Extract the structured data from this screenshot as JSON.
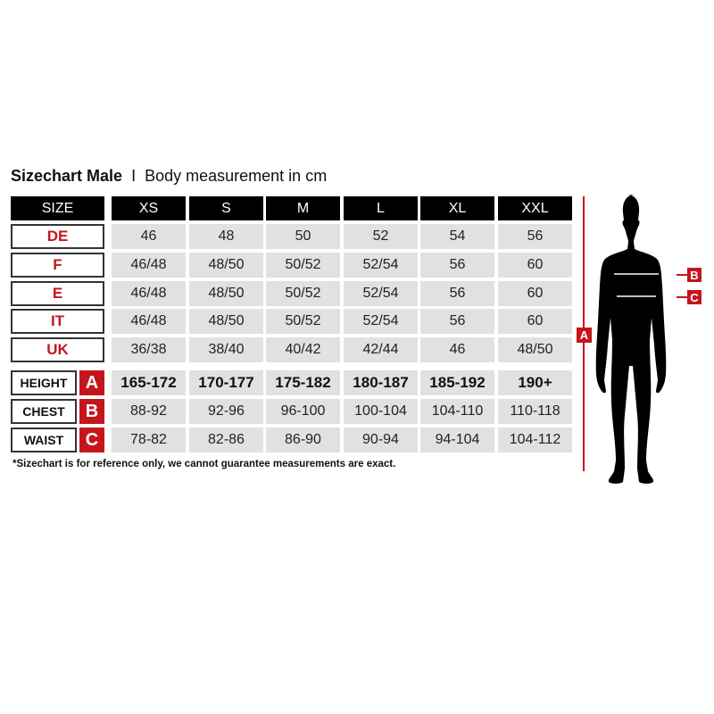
{
  "title": {
    "bold": "Sizechart Male",
    "separator": "I",
    "subtitle": "Body measurement in cm"
  },
  "colors": {
    "accent": "#c4161c",
    "header_bg": "#000000",
    "cell_bg": "#e1e1e1"
  },
  "size_header": "SIZE",
  "sizes": [
    "XS",
    "S",
    "M",
    "L",
    "XL",
    "XXL"
  ],
  "conversion_rows": [
    {
      "label": "DE",
      "values": [
        "46",
        "48",
        "50",
        "52",
        "54",
        "56"
      ]
    },
    {
      "label": "F",
      "values": [
        "46/48",
        "48/50",
        "50/52",
        "52/54",
        "56",
        "60"
      ]
    },
    {
      "label": "E",
      "values": [
        "46/48",
        "48/50",
        "50/52",
        "52/54",
        "56",
        "60"
      ]
    },
    {
      "label": "IT",
      "values": [
        "46/48",
        "48/50",
        "50/52",
        "52/54",
        "56",
        "60"
      ]
    },
    {
      "label": "UK",
      "values": [
        "36/38",
        "38/40",
        "40/42",
        "42/44",
        "46",
        "48/50"
      ]
    }
  ],
  "measurement_rows": [
    {
      "label": "HEIGHT",
      "marker": "A",
      "values": [
        "165-172",
        "170-177",
        "175-182",
        "180-187",
        "185-192",
        "190+"
      ]
    },
    {
      "label": "CHEST",
      "marker": "B",
      "values": [
        "88-92",
        "92-96",
        "96-100",
        "100-104",
        "104-110",
        "110-118"
      ]
    },
    {
      "label": "WAIST",
      "marker": "C",
      "values": [
        "78-82",
        "82-86",
        "86-90",
        "90-94",
        "94-104",
        "104-112"
      ]
    }
  ],
  "figure": {
    "height_marker": "A",
    "chest_marker": "B",
    "waist_marker": "C"
  },
  "note": "*Sizechart is for reference only, we cannot guarantee measurements are exact."
}
